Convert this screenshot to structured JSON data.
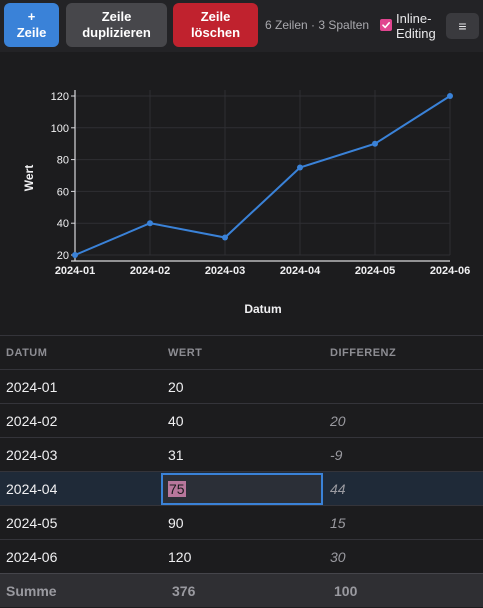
{
  "toolbar": {
    "add_label": [
      "+",
      "Zeile"
    ],
    "duplicate_label": [
      "Zeile",
      "duplizieren"
    ],
    "delete_label": [
      "Zeile",
      "löschen"
    ],
    "info": "6 Zeilen · 3 Spalten",
    "inline_editing_label": [
      "Inline-",
      "Editing"
    ],
    "inline_editing_checked": true,
    "menu_icon": "≡"
  },
  "colors": {
    "accent": "#3a82d8",
    "danger": "#c0222e",
    "checkbox": "#e0458f",
    "line": "#3a82d8"
  },
  "chart_data": {
    "type": "line",
    "categories": [
      "2024-01",
      "2024-02",
      "2024-03",
      "2024-04",
      "2024-05",
      "2024-06"
    ],
    "values": [
      20,
      40,
      31,
      75,
      90,
      120
    ],
    "xlabel": "Datum",
    "ylabel": "Wert",
    "yticks": [
      20,
      40,
      60,
      80,
      100,
      120
    ],
    "ylim": [
      20,
      120
    ],
    "grid": true
  },
  "table": {
    "headers": [
      "DATUM",
      "WERT",
      "DIFFERENZ"
    ],
    "rows": [
      {
        "datum": "2024-01",
        "wert": "20",
        "differenz": ""
      },
      {
        "datum": "2024-02",
        "wert": "40",
        "differenz": "20"
      },
      {
        "datum": "2024-03",
        "wert": "31",
        "differenz": "-9"
      },
      {
        "datum": "2024-04",
        "wert": "75",
        "differenz": "44"
      },
      {
        "datum": "2024-05",
        "wert": "90",
        "differenz": "15"
      },
      {
        "datum": "2024-06",
        "wert": "120",
        "differenz": "30"
      }
    ],
    "editing_row": 3,
    "summary": {
      "label": "Summe",
      "wert": "376",
      "differenz": "100"
    }
  }
}
